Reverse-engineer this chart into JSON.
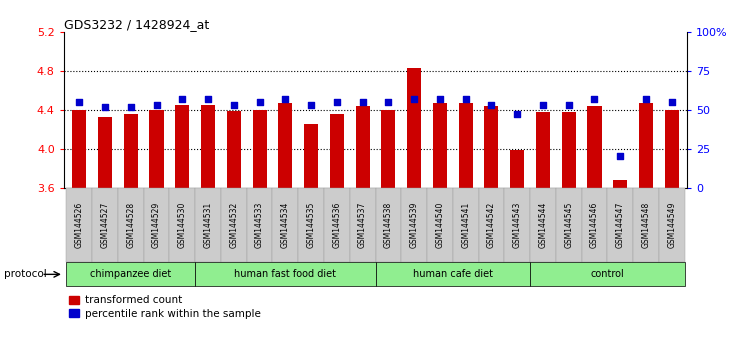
{
  "title": "GDS3232 / 1428924_at",
  "samples": [
    "GSM144526",
    "GSM144527",
    "GSM144528",
    "GSM144529",
    "GSM144530",
    "GSM144531",
    "GSM144532",
    "GSM144533",
    "GSM144534",
    "GSM144535",
    "GSM144536",
    "GSM144537",
    "GSM144538",
    "GSM144539",
    "GSM144540",
    "GSM144541",
    "GSM144542",
    "GSM144543",
    "GSM144544",
    "GSM144545",
    "GSM144546",
    "GSM144547",
    "GSM144548",
    "GSM144549"
  ],
  "red_values": [
    4.4,
    4.33,
    4.36,
    4.4,
    4.45,
    4.45,
    4.39,
    4.4,
    4.47,
    4.25,
    4.36,
    4.44,
    4.4,
    4.83,
    4.47,
    4.47,
    4.44,
    3.99,
    4.38,
    4.38,
    4.44,
    3.68,
    4.47,
    4.4
  ],
  "blue_values": [
    55,
    52,
    52,
    53,
    57,
    57,
    53,
    55,
    57,
    53,
    55,
    55,
    55,
    57,
    57,
    57,
    53,
    47,
    53,
    53,
    57,
    20,
    57,
    55
  ],
  "group_labels": [
    "chimpanzee diet",
    "human fast food diet",
    "human cafe diet",
    "control"
  ],
  "group_ranges": [
    [
      0,
      5
    ],
    [
      5,
      12
    ],
    [
      12,
      18
    ],
    [
      18,
      24
    ]
  ],
  "group_color": "#90EE90",
  "ylim_left": [
    3.6,
    5.2
  ],
  "ylim_right": [
    0,
    100
  ],
  "yticks_left": [
    3.6,
    4.0,
    4.4,
    4.8,
    5.2
  ],
  "yticks_right": [
    0,
    25,
    50,
    75,
    100
  ],
  "bar_color": "#CC0000",
  "dot_color": "#0000CC",
  "bar_width": 0.55
}
